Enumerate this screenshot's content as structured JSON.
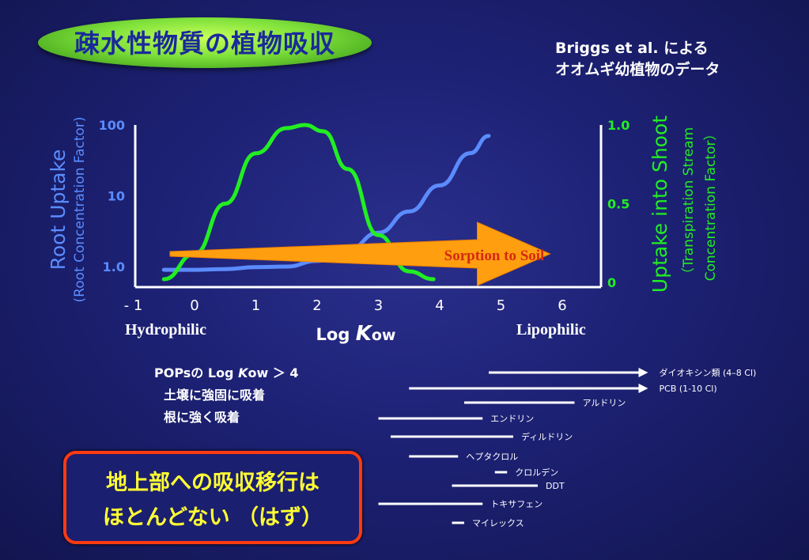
{
  "title": "疎水性物質の植物吸収",
  "source": {
    "line1": "Briggs et al.  による",
    "line2": "オオムギ幼植物のデータ"
  },
  "chart_data": {
    "type": "line",
    "xlabel_main": "Log ",
    "xlabel_k": "K",
    "xlabel_sub": "ow",
    "x_ticks": [
      "- 1",
      "0",
      "1",
      "2",
      "3",
      "4",
      "5",
      "6"
    ],
    "xlim": [
      -1,
      6
    ],
    "left_axis": {
      "label": "Root Uptake",
      "sublabel": "(Root Concentration Factor)",
      "scale": "log",
      "ticks": [
        "100",
        "10",
        "1.0"
      ],
      "ylim": [
        1,
        100
      ],
      "color": "#5b8cff"
    },
    "right_axis": {
      "label": "Uptake into Shoot",
      "sublabel1": "（Transpiration Stream",
      "sublabel2": "Concentration Factor）",
      "ticks": [
        "1.0",
        "0.5",
        "0"
      ],
      "ylim": [
        0,
        1
      ],
      "color": "#22ee22"
    },
    "series": [
      {
        "axis": "left",
        "color": "#5b8cff",
        "x": [
          -0.5,
          0,
          0.5,
          1,
          1.5,
          2,
          2.5,
          3,
          3.5,
          4,
          4.5,
          4.8
        ],
        "y": [
          0.9,
          0.9,
          0.92,
          0.98,
          1.0,
          1.2,
          1.7,
          3.0,
          6.0,
          14,
          40,
          70
        ]
      },
      {
        "axis": "right",
        "color": "#22ee22",
        "x": [
          -0.5,
          0,
          0.5,
          1,
          1.5,
          1.8,
          2.1,
          2.5,
          3,
          3.5,
          3.9
        ],
        "y": [
          0.02,
          0.18,
          0.5,
          0.82,
          0.98,
          1.0,
          0.96,
          0.72,
          0.3,
          0.07,
          0.02
        ]
      }
    ],
    "arrow": {
      "label": "Sorption to Soil",
      "x_from": -0.4,
      "x_to": 5.8
    },
    "hydrophilic": "Hydrophilic",
    "lipophilic": "Lipophilic"
  },
  "pops": {
    "line1_a": "POPsの Log ",
    "line1_k": "K",
    "line1_b": "ow ＞ 4",
    "line2": "土壌に強固に吸着",
    "line3": "根に強く吸着"
  },
  "ranges": [
    {
      "label": "ダイオキシン類 (4–8 Cl)",
      "x0": 4.8,
      "x1": 7.4,
      "arrow": true
    },
    {
      "label": "PCB (1-10 Cl)",
      "x0": 3.5,
      "x1": 7.4,
      "arrow": true
    },
    {
      "label": "アルドリン",
      "x0": 4.4,
      "x1": 6.2
    },
    {
      "label": "エンドリン",
      "x0": 3.0,
      "x1": 4.7
    },
    {
      "label": "ディルドリン",
      "x0": 3.2,
      "x1": 5.2
    },
    {
      "label": "ヘプタクロル",
      "x0": 3.5,
      "x1": 4.3
    },
    {
      "label": "クロルデン",
      "x0": 4.9,
      "x1": 5.1
    },
    {
      "label": "DDT",
      "x0": 4.2,
      "x1": 5.6
    },
    {
      "label": "トキサフェン",
      "x0": 3.0,
      "x1": 4.7
    },
    {
      "label": "マイレックス",
      "x0": 4.2,
      "x1": 4.4
    }
  ],
  "conclusion": {
    "line1": "地上部への吸収移行は",
    "line2": "ほとんどない （はず）"
  }
}
